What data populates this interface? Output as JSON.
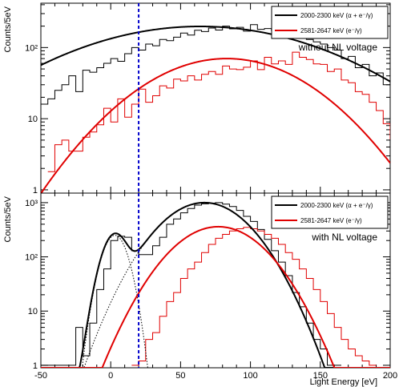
{
  "chart_data": [
    {
      "type": "line",
      "panel": "top",
      "ylabel": "Counts/5eV",
      "yscale": "log",
      "xlim": [
        -50,
        200
      ],
      "ylim": [
        0.9,
        420
      ],
      "y_ticks": [
        "1",
        "10",
        "10²"
      ],
      "annotation": "without NL voltage",
      "vline_x": 20,
      "legend": [
        "2000-2300 keV (α + e⁻/γ)",
        "2581-2647 keV (e⁻/γ)"
      ],
      "series": [
        {
          "name": "2000-2300 keV (α + e⁻/γ)",
          "color": "#000000",
          "fit": {
            "type": "gauss",
            "amp": 198,
            "mean": 64,
            "sigma": 72
          },
          "hist_x0": -47.5,
          "hist_dx": 5,
          "hist_y": [
            16,
            19,
            25,
            30,
            40,
            24,
            48,
            45,
            52,
            60,
            70,
            64,
            82,
            100,
            92,
            112,
            106,
            130,
            125,
            140,
            160,
            150,
            175,
            168,
            188,
            176,
            200,
            183,
            192,
            170,
            210,
            180,
            185,
            175,
            200,
            168,
            160,
            170,
            130,
            120,
            112,
            100,
            92,
            70,
            75,
            52,
            58,
            40,
            44,
            30,
            16
          ]
        },
        {
          "name": "2581-2647 keV (e⁻/γ)",
          "color": "#e00000",
          "fit": {
            "type": "gauss",
            "amp": 70,
            "mean": 83,
            "sigma": 45
          },
          "hist_x0": -42.5,
          "hist_dx": 5,
          "hist_y": [
            1.8,
            4.3,
            5,
            3.5,
            3.5,
            5.5,
            6.5,
            8.2,
            14,
            9,
            19,
            10.5,
            16,
            26,
            17,
            21,
            29,
            27,
            36,
            34,
            40,
            35,
            42,
            46,
            42,
            55,
            50,
            49,
            53,
            65,
            49,
            73,
            59,
            65,
            58,
            86,
            73,
            68,
            59,
            58,
            46,
            50,
            35,
            32,
            24,
            22,
            17,
            13,
            8.5,
            5.2
          ]
        }
      ]
    },
    {
      "type": "line",
      "panel": "bottom",
      "ylabel": "Counts/5eV",
      "xlabel": "Light Energy [eV]",
      "yscale": "log",
      "xlim": [
        -50,
        200
      ],
      "ylim": [
        0.9,
        1500
      ],
      "x_ticks": [
        "-50",
        "0",
        "50",
        "100",
        "150",
        "200"
      ],
      "y_ticks": [
        "1",
        "10",
        "10²",
        "10³"
      ],
      "annotation": "with NL voltage",
      "vline_x": 20,
      "legend": [
        "2000-2300 keV (α + e⁻/γ)",
        "2581-2647 keV (e⁻/γ)"
      ],
      "series": [
        {
          "name": "2000-2300 keV (α + e⁻/γ)",
          "color": "#000000",
          "fit_components": [
            {
              "type": "gauss",
              "amp": 250,
              "mean": 3,
              "sigma": 7
            },
            {
              "type": "gauss",
              "amp": 1000,
              "mean": 67,
              "sigma": 23
            }
          ],
          "hist_x0": -47.5,
          "hist_dx": 5,
          "hist_y": [
            1,
            1,
            1,
            1,
            1,
            5,
            1.5,
            6,
            25,
            60,
            200,
            240,
            230,
            130,
            110,
            110,
            160,
            230,
            400,
            500,
            650,
            780,
            900,
            950,
            980,
            1000,
            940,
            850,
            720,
            560,
            450,
            320,
            210,
            130,
            80,
            45,
            22,
            12,
            6,
            3,
            2,
            1,
            1
          ]
        },
        {
          "name": "2581-2647 keV (e⁻/γ)",
          "color": "#e00000",
          "fit": {
            "type": "gauss",
            "amp": 360,
            "mean": 77,
            "sigma": 24
          },
          "hist_x0": 17.5,
          "hist_dx": 5,
          "hist_y": [
            1,
            1.2,
            3,
            4,
            8,
            15,
            22,
            40,
            60,
            80,
            120,
            170,
            220,
            260,
            300,
            330,
            350,
            330,
            300,
            260,
            220,
            170,
            120,
            90,
            60,
            40,
            25,
            15,
            9,
            5,
            3,
            2,
            1.5,
            1.2,
            1
          ]
        }
      ]
    }
  ]
}
